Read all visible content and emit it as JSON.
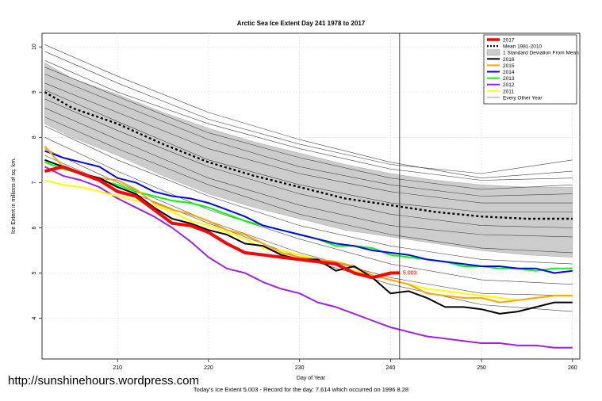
{
  "website": "http://sunshinehours.wordpress.com",
  "footnote": "Today's Ice Extent  5.003  - Record for the day: 7.614 which occurred on 1996 8.28",
  "chart_data": {
    "type": "line",
    "title": "Arctic Sea Ice Extent Day 241 1978 to 2017",
    "xlabel": "Day of Year",
    "ylabel": "Ice Extent in millions of sq. km.",
    "xlim": [
      201.7,
      260.8
    ],
    "ylim": [
      3.1,
      10.3
    ],
    "xticks": [
      210,
      220,
      230,
      240,
      250,
      260
    ],
    "yticks": [
      4,
      5,
      6,
      7,
      8,
      9,
      10
    ],
    "grid": true,
    "current_day": 241,
    "current_value": 5.003,
    "current_value_label": "5.003",
    "legend_position": "top-right",
    "legend": [
      {
        "label": "2017",
        "color": "#ff0000",
        "style": "thick"
      },
      {
        "label": "Mean 1981-2010",
        "color": "#000000",
        "style": "dotted"
      },
      {
        "label": "1 Standard Deviation From Mean",
        "color": "#cccccc",
        "style": "box"
      },
      {
        "label": "2016",
        "color": "#000000",
        "style": "line"
      },
      {
        "label": "2015",
        "color": "#ffa500",
        "style": "line"
      },
      {
        "label": "2014",
        "color": "#0000ff",
        "style": "line"
      },
      {
        "label": "2013",
        "color": "#00ff00",
        "style": "line"
      },
      {
        "label": "2012",
        "color": "#a020f0",
        "style": "line"
      },
      {
        "label": "2011",
        "color": "#ffff00",
        "style": "line"
      },
      {
        "label": "Every Other Year",
        "color": "#666666",
        "style": "thin"
      }
    ],
    "series": [
      {
        "name": "Mean 1981-2010",
        "color": "#000000",
        "style": "dotted",
        "x": [
          202,
          205,
          210,
          215,
          220,
          225,
          230,
          235,
          240,
          245,
          250,
          255,
          260
        ],
        "y": [
          9.0,
          8.65,
          8.3,
          7.85,
          7.45,
          7.15,
          6.9,
          6.65,
          6.5,
          6.35,
          6.25,
          6.2,
          6.2
        ]
      },
      {
        "name": "1 Standard Deviation From Mean (upper)",
        "color": "#cccccc",
        "style": "band-upper",
        "x": [
          202,
          205,
          210,
          215,
          220,
          225,
          230,
          235,
          240,
          245,
          250,
          255,
          260
        ],
        "y": [
          9.65,
          9.3,
          8.95,
          8.55,
          8.2,
          7.9,
          7.65,
          7.4,
          7.2,
          7.05,
          6.95,
          6.9,
          6.9
        ]
      },
      {
        "name": "1 Standard Deviation From Mean (lower)",
        "color": "#cccccc",
        "style": "band-lower",
        "x": [
          202,
          205,
          210,
          215,
          220,
          225,
          230,
          235,
          240,
          245,
          250,
          255,
          260
        ],
        "y": [
          8.3,
          8.0,
          7.6,
          7.15,
          6.75,
          6.45,
          6.2,
          5.95,
          5.8,
          5.65,
          5.5,
          5.4,
          5.35
        ]
      },
      {
        "name": "2017",
        "color": "#ff0000",
        "style": "thick",
        "x": [
          202,
          204,
          206,
          208,
          210,
          212,
          214,
          216,
          218,
          220,
          222,
          224,
          226,
          228,
          230,
          232,
          234,
          236,
          238,
          240,
          241
        ],
        "y": [
          7.25,
          7.35,
          7.2,
          7.05,
          6.8,
          6.7,
          6.4,
          6.1,
          6.05,
          5.9,
          5.65,
          5.45,
          5.4,
          5.35,
          5.3,
          5.25,
          5.2,
          5.0,
          4.9,
          5.0,
          5.003
        ]
      },
      {
        "name": "2016",
        "color": "#000000",
        "style": "line",
        "x": [
          202,
          204,
          206,
          208,
          210,
          212,
          214,
          216,
          218,
          220,
          222,
          224,
          226,
          228,
          230,
          232,
          234,
          236,
          238,
          240,
          242,
          244,
          246,
          248,
          250,
          252,
          254,
          256,
          258,
          260
        ],
        "y": [
          7.5,
          7.35,
          7.2,
          7.1,
          6.9,
          6.75,
          6.45,
          6.2,
          6.1,
          5.95,
          5.85,
          5.65,
          5.6,
          5.4,
          5.3,
          5.3,
          5.05,
          5.15,
          4.9,
          4.55,
          4.6,
          4.45,
          4.25,
          4.25,
          4.2,
          4.1,
          4.15,
          4.25,
          4.35,
          4.35
        ]
      },
      {
        "name": "2015",
        "color": "#ffa500",
        "style": "line",
        "x": [
          202,
          204,
          206,
          208,
          210,
          212,
          214,
          216,
          218,
          220,
          222,
          224,
          226,
          228,
          230,
          232,
          234,
          236,
          238,
          240,
          242,
          244,
          246,
          248,
          250,
          252,
          254,
          256,
          258,
          260
        ],
        "y": [
          7.8,
          7.35,
          7.2,
          7.1,
          7.05,
          6.85,
          6.55,
          6.4,
          6.3,
          6.15,
          5.95,
          5.85,
          5.65,
          5.45,
          5.35,
          5.3,
          5.25,
          5.15,
          4.95,
          4.85,
          4.75,
          4.55,
          4.5,
          4.45,
          4.45,
          4.35,
          4.4,
          4.45,
          4.5,
          4.5
        ]
      },
      {
        "name": "2014",
        "color": "#0000ff",
        "style": "line",
        "x": [
          202,
          204,
          206,
          208,
          210,
          212,
          214,
          216,
          218,
          220,
          222,
          224,
          226,
          228,
          230,
          232,
          234,
          236,
          238,
          240,
          242,
          244,
          246,
          248,
          250,
          252,
          254,
          256,
          258,
          260
        ],
        "y": [
          7.7,
          7.55,
          7.45,
          7.35,
          7.1,
          7.0,
          6.8,
          6.7,
          6.65,
          6.55,
          6.4,
          6.25,
          6.05,
          5.95,
          5.85,
          5.75,
          5.65,
          5.6,
          5.5,
          5.45,
          5.4,
          5.3,
          5.25,
          5.2,
          5.15,
          5.15,
          5.1,
          5.1,
          5.0,
          5.05
        ]
      },
      {
        "name": "2013",
        "color": "#00ff00",
        "style": "line",
        "x": [
          202,
          204,
          206,
          208,
          210,
          212,
          214,
          216,
          218,
          220,
          222,
          224,
          226,
          228,
          230,
          232,
          234,
          236,
          238,
          240,
          242,
          244,
          246,
          248,
          250,
          252,
          254,
          256,
          258,
          260
        ],
        "y": [
          7.45,
          7.3,
          7.2,
          7.05,
          6.95,
          6.8,
          6.7,
          6.6,
          6.55,
          6.45,
          6.3,
          6.15,
          6.05,
          5.95,
          5.85,
          5.75,
          5.6,
          5.6,
          5.55,
          5.4,
          5.35,
          5.3,
          5.25,
          5.15,
          5.15,
          5.1,
          5.1,
          5.05,
          5.1,
          5.1
        ]
      },
      {
        "name": "2012",
        "color": "#a020f0",
        "style": "line",
        "x": [
          202,
          204,
          206,
          208,
          210,
          212,
          214,
          216,
          218,
          220,
          222,
          224,
          226,
          228,
          230,
          232,
          234,
          236,
          238,
          240,
          242,
          244,
          246,
          248,
          250,
          252,
          254,
          256,
          258,
          260
        ],
        "y": [
          7.35,
          7.15,
          7.05,
          6.9,
          6.65,
          6.45,
          6.25,
          6.0,
          5.7,
          5.35,
          5.1,
          5.0,
          4.8,
          4.65,
          4.55,
          4.35,
          4.25,
          4.1,
          3.95,
          3.8,
          3.7,
          3.6,
          3.55,
          3.5,
          3.45,
          3.45,
          3.4,
          3.4,
          3.35,
          3.35
        ]
      },
      {
        "name": "2011",
        "color": "#ffff00",
        "style": "line",
        "x": [
          202,
          204,
          206,
          208,
          210,
          212,
          214,
          216,
          218,
          220,
          222,
          224,
          226,
          228,
          230,
          232,
          234,
          236,
          238,
          240,
          242,
          244,
          246,
          248,
          250,
          252,
          254,
          256,
          258,
          260
        ],
        "y": [
          7.05,
          6.95,
          6.9,
          6.8,
          6.7,
          6.6,
          6.5,
          6.35,
          6.15,
          6.05,
          5.9,
          5.75,
          5.55,
          5.5,
          5.4,
          5.3,
          5.2,
          5.05,
          4.95,
          4.85,
          4.75,
          4.65,
          4.6,
          4.55,
          4.5,
          4.45,
          4.4,
          4.45,
          4.5,
          4.5
        ]
      }
    ],
    "background_years": [
      {
        "x": [
          202,
          210,
          220,
          230,
          240,
          250,
          260
        ],
        "y": [
          10.05,
          9.35,
          8.55,
          7.95,
          7.45,
          7.1,
          7.25
        ]
      },
      {
        "x": [
          202,
          210,
          220,
          230,
          240,
          250,
          260
        ],
        "y": [
          9.9,
          9.2,
          8.4,
          7.85,
          7.4,
          7.2,
          7.5
        ]
      },
      {
        "x": [
          202,
          210,
          220,
          230,
          240,
          250,
          260
        ],
        "y": [
          9.7,
          9.0,
          8.3,
          7.75,
          7.3,
          7.05,
          7.1
        ]
      },
      {
        "x": [
          202,
          210,
          220,
          230,
          240,
          250,
          260
        ],
        "y": [
          9.55,
          8.9,
          8.1,
          7.55,
          7.1,
          6.85,
          6.95
        ]
      },
      {
        "x": [
          202,
          210,
          220,
          230,
          240,
          250,
          260
        ],
        "y": [
          9.4,
          8.75,
          7.95,
          7.35,
          6.95,
          6.7,
          6.75
        ]
      },
      {
        "x": [
          202,
          210,
          220,
          230,
          240,
          250,
          260
        ],
        "y": [
          9.2,
          8.55,
          7.75,
          7.2,
          6.8,
          6.55,
          6.55
        ]
      },
      {
        "x": [
          202,
          210,
          220,
          230,
          240,
          250,
          260
        ],
        "y": [
          9.05,
          8.35,
          7.5,
          6.95,
          6.55,
          6.35,
          6.35
        ]
      },
      {
        "x": [
          202,
          210,
          220,
          230,
          240,
          250,
          260
        ],
        "y": [
          8.85,
          8.15,
          7.35,
          6.75,
          6.3,
          6.05,
          6.0
        ]
      },
      {
        "x": [
          202,
          210,
          220,
          230,
          240,
          250,
          260
        ],
        "y": [
          8.65,
          7.95,
          7.1,
          6.5,
          6.05,
          5.85,
          5.8
        ]
      },
      {
        "x": [
          202,
          210,
          220,
          230,
          240,
          250,
          260
        ],
        "y": [
          8.45,
          7.75,
          6.95,
          6.3,
          5.85,
          5.55,
          5.45
        ]
      },
      {
        "x": [
          202,
          210,
          220,
          230,
          240,
          250,
          260
        ],
        "y": [
          8.25,
          7.5,
          6.7,
          6.05,
          5.6,
          5.3,
          5.2
        ]
      },
      {
        "x": [
          202,
          210,
          220,
          230,
          240,
          250,
          260
        ],
        "y": [
          8.0,
          7.25,
          6.4,
          5.75,
          5.2,
          4.85,
          4.75
        ]
      },
      {
        "x": [
          202,
          210,
          220,
          230,
          240,
          250,
          260
        ],
        "y": [
          7.75,
          7.0,
          6.15,
          5.45,
          4.9,
          4.55,
          4.5
        ]
      },
      {
        "x": [
          202,
          210,
          220,
          230,
          240,
          250,
          260
        ],
        "y": [
          7.6,
          6.9,
          6.1,
          5.35,
          4.75,
          4.3,
          4.15
        ]
      }
    ]
  }
}
